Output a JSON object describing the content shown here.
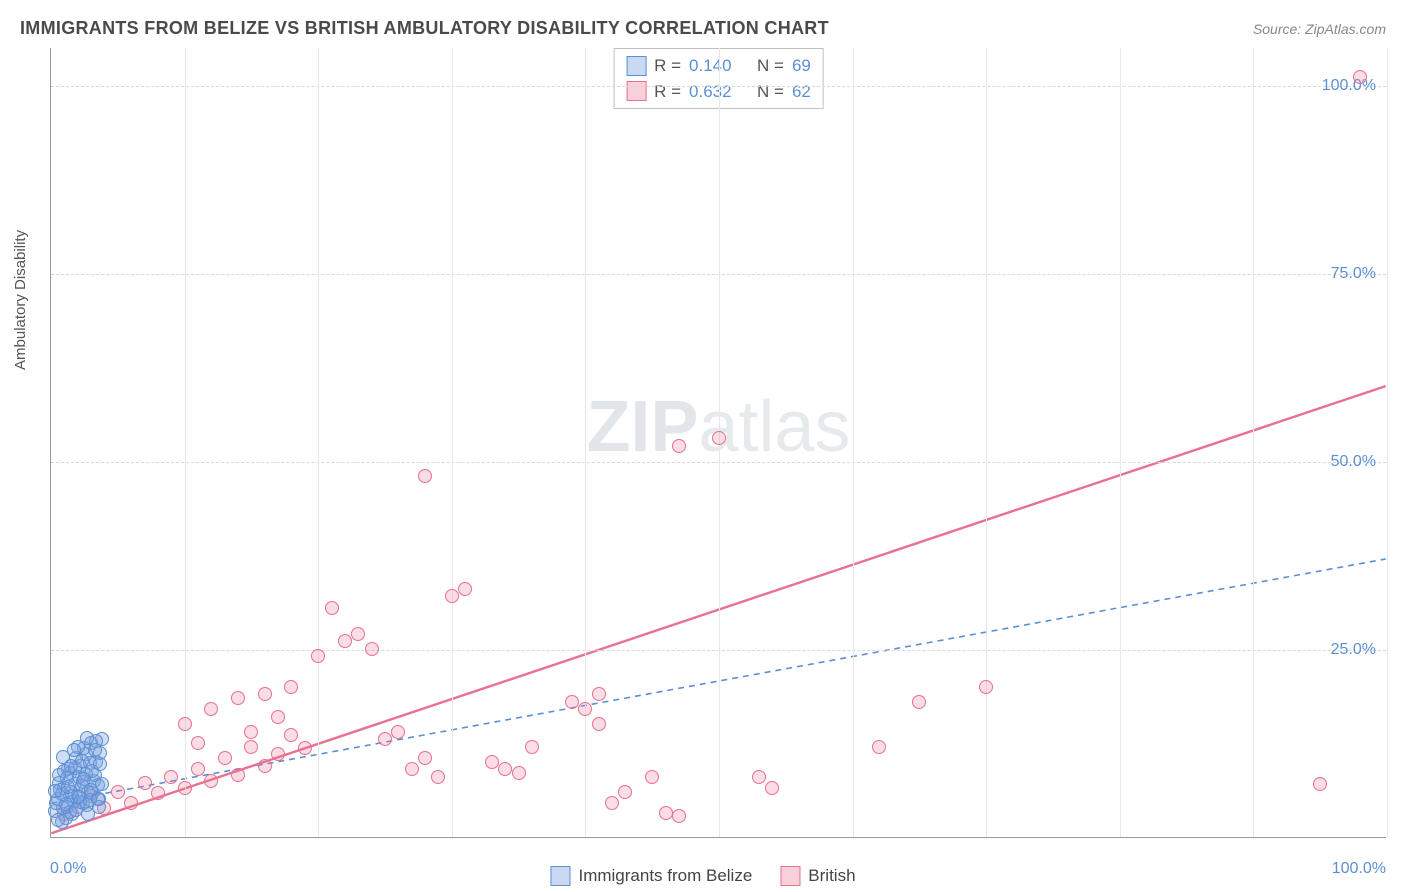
{
  "title": "IMMIGRANTS FROM BELIZE VS BRITISH AMBULATORY DISABILITY CORRELATION CHART",
  "source": "Source: ZipAtlas.com",
  "watermark": {
    "bold": "ZIP",
    "rest": "atlas"
  },
  "ylabel": "Ambulatory Disability",
  "chart": {
    "type": "scatter",
    "xlim": [
      0,
      100
    ],
    "ylim": [
      0,
      105
    ],
    "xtick_origin": "0.0%",
    "xtick_max": "100.0%",
    "yticks": [
      {
        "v": 25,
        "label": "25.0%"
      },
      {
        "v": 50,
        "label": "50.0%"
      },
      {
        "v": 75,
        "label": "75.0%"
      },
      {
        "v": 100,
        "label": "100.0%"
      }
    ],
    "vgrid": [
      10,
      20,
      30,
      40,
      50,
      60,
      70,
      80,
      90,
      100
    ],
    "background_color": "#ffffff",
    "grid_color": "#d8d8d8",
    "series": {
      "blue": {
        "label": "Immigrants from Belize",
        "color": "#5b8fd6",
        "fill": "rgba(120,160,220,0.35)",
        "R": "0.140",
        "N": "69",
        "points": [
          [
            0.3,
            3.5
          ],
          [
            0.5,
            5.0
          ],
          [
            0.8,
            2.0
          ],
          [
            1.0,
            6.5
          ],
          [
            1.2,
            4.0
          ],
          [
            1.4,
            8.5
          ],
          [
            1.6,
            3.0
          ],
          [
            1.8,
            7.0
          ],
          [
            2.0,
            5.5
          ],
          [
            2.2,
            9.5
          ],
          [
            2.4,
            4.5
          ],
          [
            2.6,
            11.0
          ],
          [
            2.8,
            6.0
          ],
          [
            3.0,
            12.5
          ],
          [
            3.2,
            7.5
          ],
          [
            3.4,
            10.0
          ],
          [
            3.6,
            5.0
          ],
          [
            3.8,
            13.0
          ],
          [
            1.1,
            2.5
          ],
          [
            1.3,
            9.0
          ],
          [
            1.5,
            6.0
          ],
          [
            1.7,
            4.8
          ],
          [
            0.6,
            7.2
          ],
          [
            0.9,
            3.8
          ],
          [
            2.1,
            8.0
          ],
          [
            2.3,
            6.8
          ],
          [
            2.5,
            11.8
          ],
          [
            2.7,
            4.2
          ],
          [
            2.9,
            9.8
          ],
          [
            3.1,
            5.8
          ],
          [
            0.4,
            4.5
          ],
          [
            0.7,
            6.3
          ],
          [
            1.9,
            10.5
          ],
          [
            3.3,
            8.2
          ],
          [
            3.5,
            6.9
          ],
          [
            3.7,
            11.2
          ],
          [
            1.0,
            8.8
          ],
          [
            1.6,
            5.4
          ],
          [
            2.0,
            12.0
          ],
          [
            2.4,
            7.3
          ],
          [
            0.5,
            2.3
          ],
          [
            0.8,
            5.7
          ],
          [
            1.2,
            7.9
          ],
          [
            1.4,
            3.3
          ],
          [
            1.8,
            9.2
          ],
          [
            2.2,
            4.7
          ],
          [
            2.6,
            8.4
          ],
          [
            3.0,
            6.2
          ],
          [
            3.4,
            12.8
          ],
          [
            3.6,
            4.0
          ],
          [
            0.3,
            6.1
          ],
          [
            0.6,
            8.3
          ],
          [
            0.9,
            10.7
          ],
          [
            1.1,
            4.4
          ],
          [
            1.3,
            6.6
          ],
          [
            1.5,
            9.4
          ],
          [
            1.7,
            11.5
          ],
          [
            1.9,
            3.6
          ],
          [
            2.1,
            5.3
          ],
          [
            2.3,
            10.1
          ],
          [
            2.5,
            7.7
          ],
          [
            2.7,
            13.2
          ],
          [
            2.9,
            4.9
          ],
          [
            3.1,
            8.8
          ],
          [
            3.3,
            11.6
          ],
          [
            3.5,
            5.1
          ],
          [
            3.7,
            9.7
          ],
          [
            3.8,
            7.1
          ],
          [
            2.8,
            3.1
          ]
        ],
        "trend": {
          "x1": 0,
          "y1": 4.5,
          "x2": 100,
          "y2": 37,
          "dash": "6,5",
          "width": 1.6
        }
      },
      "pink": {
        "label": "British",
        "color": "#e7718f",
        "fill": "rgba(235,120,150,0.25)",
        "R": "0.632",
        "N": "62",
        "points": [
          [
            1,
            3
          ],
          [
            2,
            4
          ],
          [
            3,
            5.5
          ],
          [
            4,
            3.8
          ],
          [
            5,
            6
          ],
          [
            6,
            4.5
          ],
          [
            7,
            7.2
          ],
          [
            8,
            5.8
          ],
          [
            9,
            8
          ],
          [
            10,
            6.5
          ],
          [
            11,
            9
          ],
          [
            12,
            7.4
          ],
          [
            13,
            10.5
          ],
          [
            14,
            8.3
          ],
          [
            15,
            12
          ],
          [
            16,
            9.5
          ],
          [
            17,
            11
          ],
          [
            18,
            13.5
          ],
          [
            10,
            15
          ],
          [
            12,
            17
          ],
          [
            14,
            18.5
          ],
          [
            16,
            19
          ],
          [
            18,
            20
          ],
          [
            15,
            14
          ],
          [
            17,
            16
          ],
          [
            11,
            12.5
          ],
          [
            20,
            24
          ],
          [
            22,
            26
          ],
          [
            23,
            27
          ],
          [
            24,
            25
          ],
          [
            26,
            14
          ],
          [
            27,
            9
          ],
          [
            28,
            10.5
          ],
          [
            29,
            8
          ],
          [
            28,
            48
          ],
          [
            30,
            32
          ],
          [
            31,
            33
          ],
          [
            33,
            10
          ],
          [
            34,
            9
          ],
          [
            35,
            8.5
          ],
          [
            36,
            12
          ],
          [
            39,
            18
          ],
          [
            40,
            17
          ],
          [
            41,
            15
          ],
          [
            42,
            4.5
          ],
          [
            43,
            6
          ],
          [
            45,
            8
          ],
          [
            46,
            3.2
          ],
          [
            41,
            19
          ],
          [
            50,
            53
          ],
          [
            47,
            52
          ],
          [
            53,
            8
          ],
          [
            54,
            6.5
          ],
          [
            47,
            2.8
          ],
          [
            65,
            18
          ],
          [
            70,
            20
          ],
          [
            62,
            12
          ],
          [
            98,
            101
          ],
          [
            95,
            7
          ],
          [
            21,
            30.5
          ],
          [
            25,
            13
          ],
          [
            19,
            11.8
          ]
        ],
        "trend": {
          "x1": 0,
          "y1": 0.5,
          "x2": 100,
          "y2": 60,
          "dash": "",
          "width": 2.4
        }
      }
    },
    "stats_labels": {
      "R": "R =",
      "N": "N ="
    }
  },
  "legend": {
    "blue": "Immigrants from Belize",
    "pink": "British"
  }
}
